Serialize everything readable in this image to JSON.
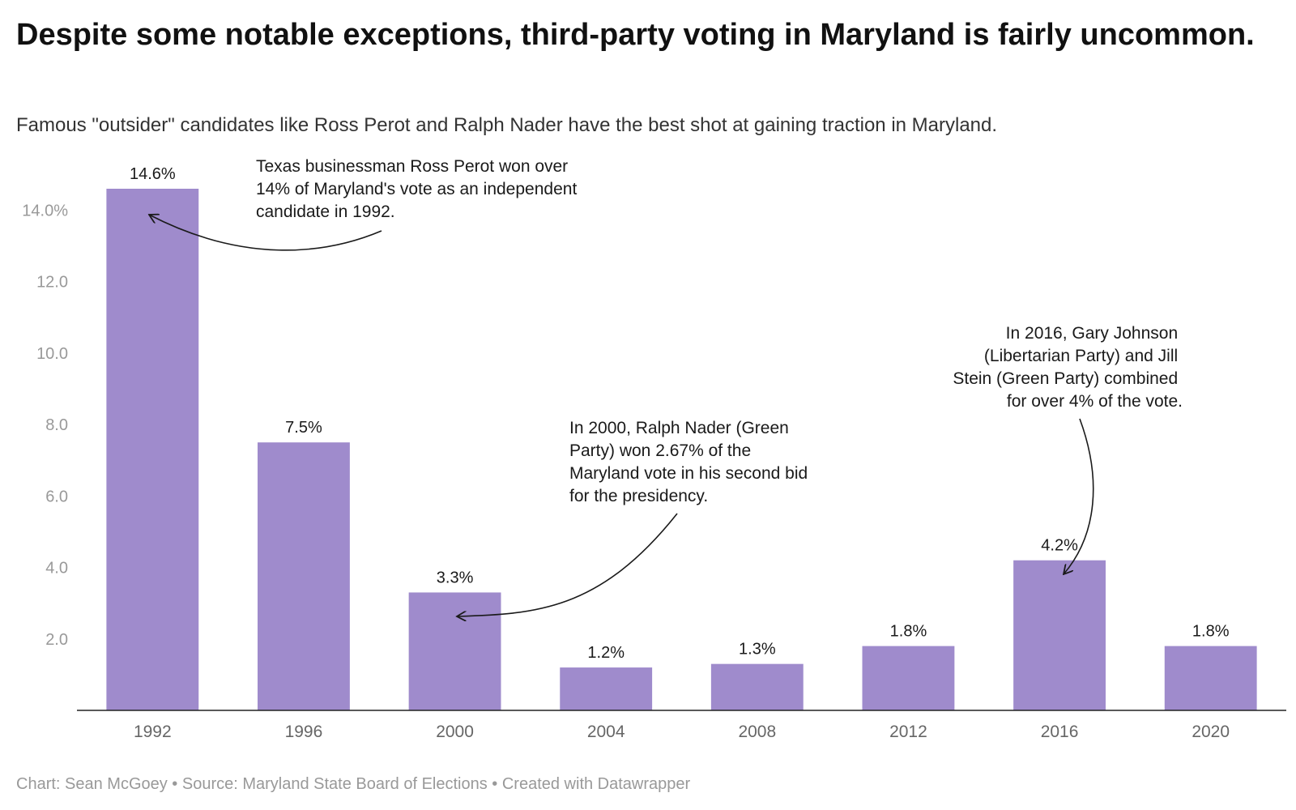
{
  "chart_data": {
    "type": "bar",
    "title": "Despite some notable exceptions, third-party voting in Maryland is fairly uncommon.",
    "subtitle": "Famous \"outsider\" candidates like Ross Perot and Ralph Nader have the best shot at gaining traction in Maryland.",
    "categories": [
      "1992",
      "1996",
      "2000",
      "2004",
      "2008",
      "2012",
      "2016",
      "2020"
    ],
    "values": [
      14.6,
      7.5,
      3.3,
      1.2,
      1.3,
      1.8,
      4.2,
      1.8
    ],
    "value_labels": [
      "14.6%",
      "7.5%",
      "3.3%",
      "1.2%",
      "1.3%",
      "1.8%",
      "4.2%",
      "1.8%"
    ],
    "y_ticks": [
      {
        "value": 2,
        "label": "2.0"
      },
      {
        "value": 4,
        "label": "4.0"
      },
      {
        "value": 6,
        "label": "6.0"
      },
      {
        "value": 8,
        "label": "8.0"
      },
      {
        "value": 10,
        "label": "10.0"
      },
      {
        "value": 12,
        "label": "12.0"
      },
      {
        "value": 14,
        "label": "14.0%"
      }
    ],
    "ylim": [
      0,
      14.6
    ],
    "bar_color": "#9f8bcc",
    "grid": false,
    "annotations": [
      {
        "target": "1992",
        "lines": [
          "Texas businessman Ross Perot won over",
          "14% of Maryland's vote as an independent",
          "candidate in 1992."
        ]
      },
      {
        "target": "2000",
        "lines": [
          "In 2000, Ralph Nader (Green",
          "Party) won 2.67% of the",
          "Maryland vote in his second bid",
          "for the presidency."
        ]
      },
      {
        "target": "2016",
        "lines": [
          "In 2016, Gary Johnson",
          "(Libertarian Party) and Jill",
          "Stein (Green Party) combined",
          "for over 4% of the vote."
        ]
      }
    ]
  },
  "footer": "Chart: Sean McGoey • Source: Maryland State Board of Elections • Created with Datawrapper"
}
